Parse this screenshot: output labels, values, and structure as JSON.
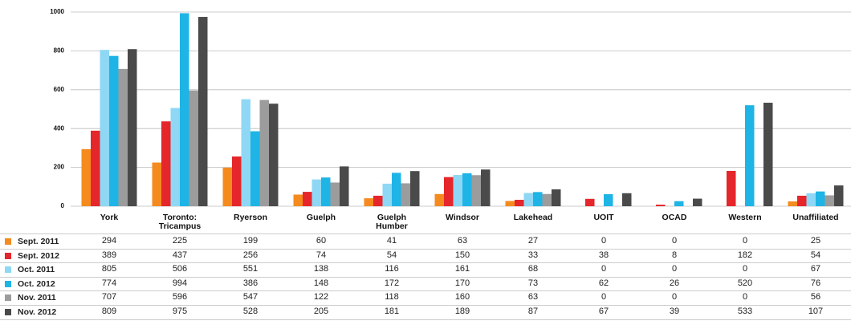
{
  "chart_data": {
    "type": "bar",
    "categories": [
      "York",
      "Toronto: Tricampus",
      "Ryerson",
      "Guelph",
      "Guelph Humber",
      "Windsor",
      "Lakehead",
      "UOIT",
      "OCAD",
      "Western",
      "Unaffiliated"
    ],
    "series": [
      {
        "name": "Sept. 2011",
        "color": "#f58b1f",
        "values": [
          294,
          225,
          199,
          60,
          41,
          63,
          27,
          0,
          0,
          0,
          25
        ]
      },
      {
        "name": "Sept. 2012",
        "color": "#e5262b",
        "values": [
          389,
          437,
          256,
          74,
          54,
          150,
          33,
          38,
          8,
          182,
          54
        ]
      },
      {
        "name": "Oct. 2011",
        "color": "#8ed8f5",
        "values": [
          805,
          506,
          551,
          138,
          116,
          161,
          68,
          0,
          0,
          0,
          67
        ]
      },
      {
        "name": "Oct. 2012",
        "color": "#1fb4e6",
        "values": [
          774,
          994,
          386,
          148,
          172,
          170,
          73,
          62,
          26,
          520,
          76
        ]
      },
      {
        "name": "Nov. 2011",
        "color": "#9c9c9c",
        "values": [
          707,
          596,
          547,
          122,
          118,
          160,
          63,
          0,
          0,
          0,
          56
        ]
      },
      {
        "name": "Nov. 2012",
        "color": "#4a4a4a",
        "values": [
          809,
          975,
          528,
          205,
          181,
          189,
          87,
          67,
          39,
          533,
          107
        ]
      }
    ],
    "ylim": [
      0,
      1000
    ],
    "yticks": [
      0,
      200,
      400,
      600,
      800,
      1000
    ],
    "grid": true
  }
}
